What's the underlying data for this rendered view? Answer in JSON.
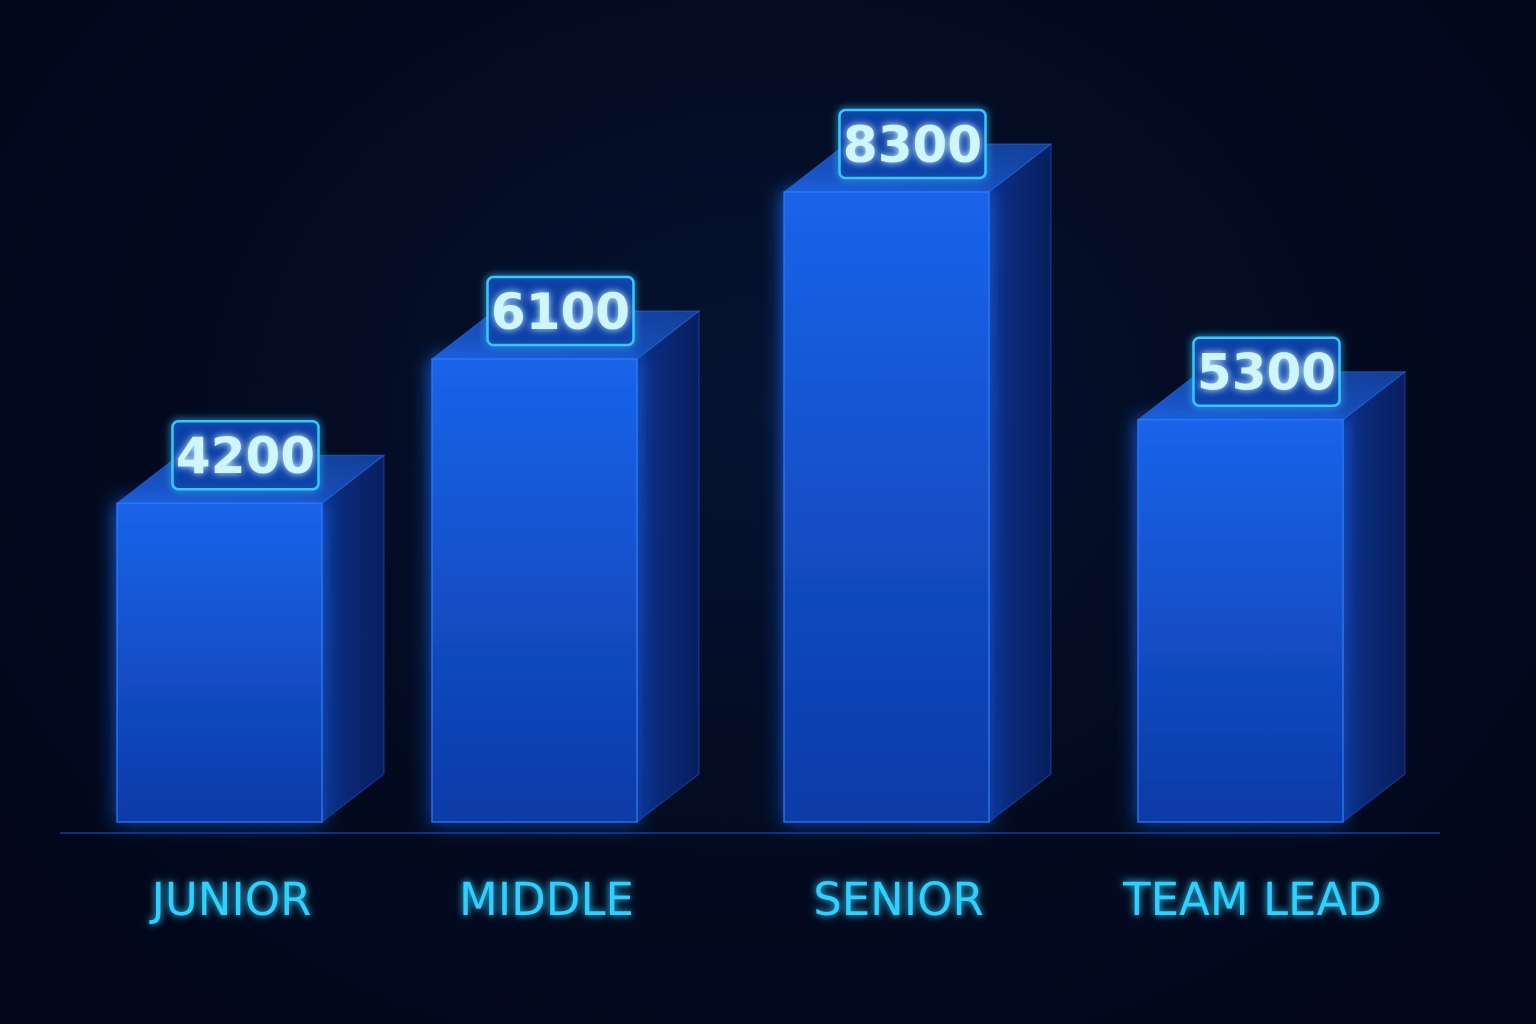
{
  "chart_data": {
    "type": "bar",
    "style": "3d",
    "categories": [
      "JUNIOR",
      "MIDDLE",
      "SENIOR",
      "TEAM LEAD"
    ],
    "values": [
      4200,
      6100,
      8300,
      5300
    ],
    "title": "",
    "xlabel": "",
    "ylabel": "",
    "ylim": [
      0,
      8300
    ],
    "grid": false,
    "legend": "none",
    "data_labels": true
  },
  "colors": {
    "background": "#030a1f",
    "bar_front": "#1458d6",
    "bar_side": "#0b2f8a",
    "bar_top": "#164fb8",
    "label_text": "#2fd0ff",
    "value_box_border": "#39c6ff",
    "value_text": "#cdf6ff"
  }
}
